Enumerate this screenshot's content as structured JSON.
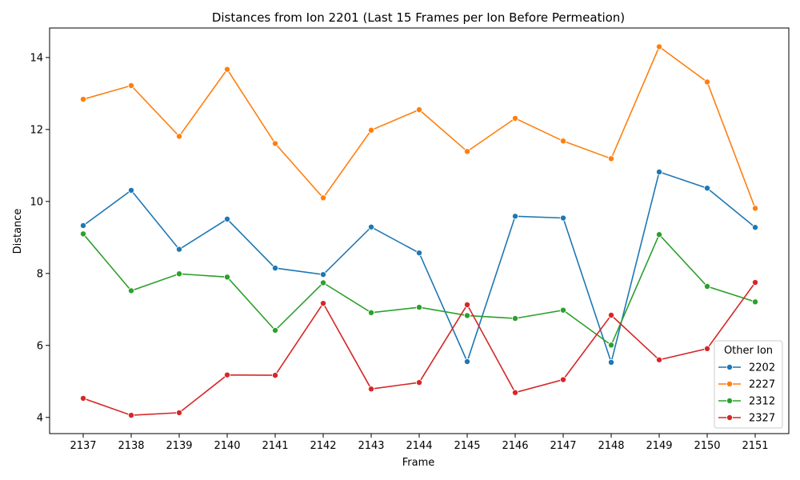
{
  "chart_data": {
    "type": "line",
    "title": "Distances from Ion 2201 (Last 15 Frames per Ion Before Permeation)",
    "xlabel": "Frame",
    "ylabel": "Distance",
    "x": [
      "2137",
      "2138",
      "2139",
      "2140",
      "2141",
      "2142",
      "2143",
      "2144",
      "2145",
      "2146",
      "2147",
      "2148",
      "2149",
      "2150",
      "2151"
    ],
    "ylim": [
      3.55,
      14.82
    ],
    "yticks": [
      4,
      6,
      8,
      10,
      12,
      14
    ],
    "grid": false,
    "legend": {
      "title": "Other Ion",
      "placement": "lower-right"
    },
    "series": [
      {
        "name": "2202",
        "color": "#1f77b4",
        "values": [
          9.33,
          10.31,
          8.67,
          9.51,
          8.15,
          7.97,
          9.29,
          8.57,
          5.55,
          9.59,
          9.54,
          5.53,
          10.82,
          10.37,
          9.28
        ]
      },
      {
        "name": "2227",
        "color": "#ff7f0e",
        "values": [
          12.84,
          13.22,
          11.81,
          13.67,
          11.61,
          10.1,
          11.98,
          12.55,
          11.39,
          12.31,
          11.68,
          11.19,
          14.3,
          13.32,
          9.81
        ]
      },
      {
        "name": "2312",
        "color": "#2ca02c",
        "values": [
          9.1,
          7.52,
          7.99,
          7.9,
          6.42,
          7.74,
          6.91,
          7.06,
          6.83,
          6.75,
          6.98,
          6.01,
          9.08,
          7.64,
          7.21
        ]
      },
      {
        "name": "2327",
        "color": "#d62728",
        "values": [
          4.53,
          4.06,
          4.13,
          5.18,
          5.17,
          7.17,
          4.79,
          4.97,
          7.13,
          4.69,
          5.05,
          6.84,
          5.6,
          5.91,
          7.75
        ]
      }
    ]
  }
}
